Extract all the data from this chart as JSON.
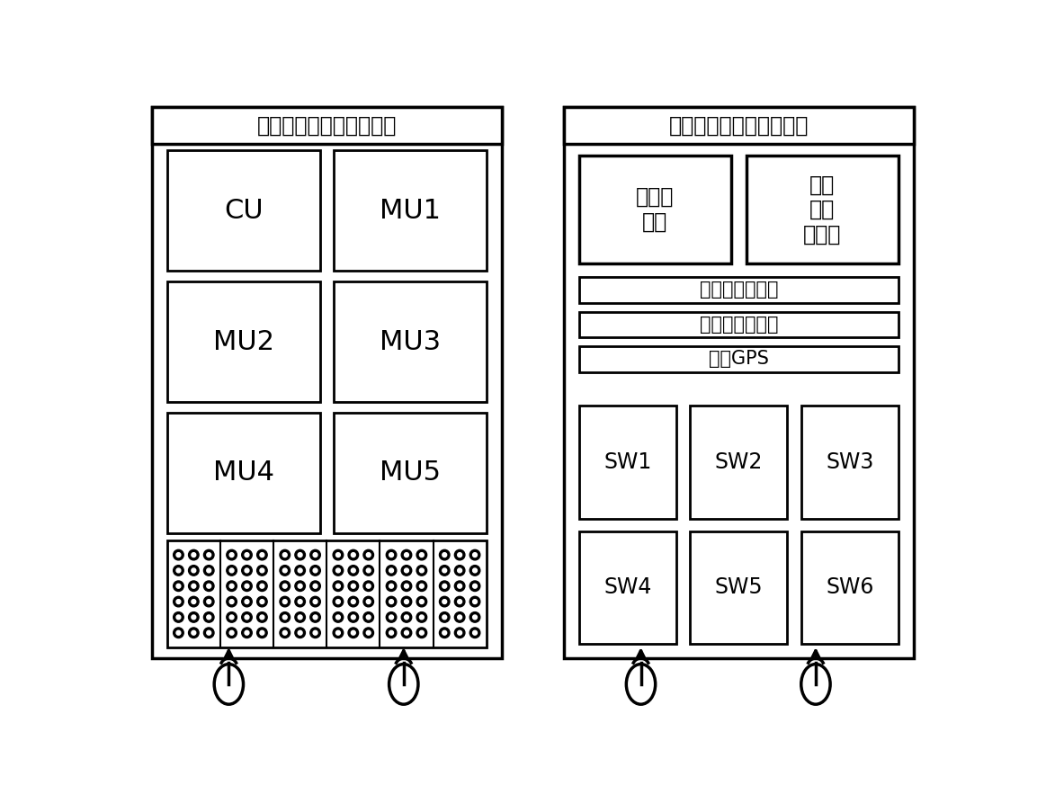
{
  "bg_color": "#ffffff",
  "line_color": "#000000",
  "left_cabinet_title": "动模广域保护测量控制柜",
  "right_cabinet_title": "动模广域保护通信模拟柜",
  "left_boxes": [
    {
      "label": "CU",
      "col": 0,
      "row": 0
    },
    {
      "label": "MU1",
      "col": 1,
      "row": 0
    },
    {
      "label": "MU2",
      "col": 0,
      "row": 1
    },
    {
      "label": "MU3",
      "col": 1,
      "row": 1
    },
    {
      "label": "MU4",
      "col": 0,
      "row": 2
    },
    {
      "label": "MU5",
      "col": 1,
      "row": 2
    }
  ],
  "right_top_boxes": [
    {
      "label": "通信管\n理机",
      "col": 0
    },
    {
      "label": "直流\n电源\n逆变器",
      "col": 1
    }
  ],
  "right_wide_bars": [
    "监控系统交换机",
    "监控系统交换机",
    "同步GPS"
  ],
  "right_sw_boxes": [
    {
      "label": "SW1",
      "col": 0,
      "row": 0
    },
    {
      "label": "SW2",
      "col": 1,
      "row": 0
    },
    {
      "label": "SW3",
      "col": 2,
      "row": 0
    },
    {
      "label": "SW4",
      "col": 0,
      "row": 1
    },
    {
      "label": "SW5",
      "col": 1,
      "row": 1
    },
    {
      "label": "SW6",
      "col": 2,
      "row": 1
    }
  ],
  "connector_dot_rows": 6,
  "connector_dot_cols_per_group": 3,
  "connector_groups": 6,
  "font_size_title": 17,
  "font_size_box_large": 22,
  "font_size_box_small": 17,
  "font_size_bar": 15
}
